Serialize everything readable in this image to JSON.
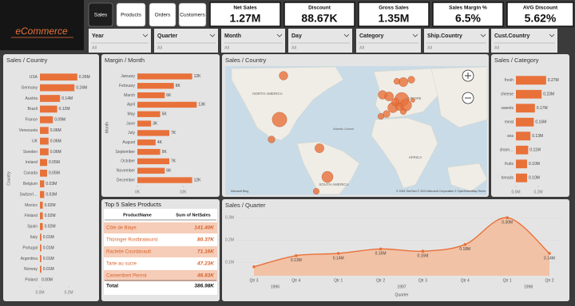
{
  "logo": "eCommerce",
  "tabs": [
    "Sales",
    "Products",
    "Orders",
    "Customers"
  ],
  "kpis": [
    {
      "title": "Net Sales",
      "value": "1.27M"
    },
    {
      "title": "Discount",
      "value": "88.67K"
    },
    {
      "title": "Gross Sales",
      "value": "1.35M"
    },
    {
      "title": "Sales Margin %",
      "value": "6.5%"
    },
    {
      "title": "AVG Discount",
      "value": "5.62%"
    }
  ],
  "slicers": [
    {
      "label": "Year",
      "value": "All"
    },
    {
      "label": "Quarter",
      "value": "All"
    },
    {
      "label": "Month",
      "value": "All"
    },
    {
      "label": "Day",
      "value": "All"
    },
    {
      "label": "Category",
      "value": "All"
    },
    {
      "label": "Ship.Country",
      "value": "All"
    },
    {
      "label": "Cust.Country",
      "value": "All"
    }
  ],
  "table": {
    "title": "Top 5 Sales Products",
    "columns": [
      "ProductName",
      "Sum of NetSales"
    ],
    "rows": [
      [
        "Côte de Blaye",
        "141.40K"
      ],
      [
        "Thüringer Rostbratwurst",
        "80.37K"
      ],
      [
        "Raclette Courdavault",
        "71.16K"
      ],
      [
        "Tarte au sucre",
        "47.23K"
      ],
      [
        "Camembert Pierrot",
        "46.83K"
      ]
    ],
    "total": [
      "Total",
      "386.98K"
    ]
  },
  "chart_data": [
    {
      "type": "hbar",
      "title": "Sales / Country",
      "y_label": "Country",
      "categories": [
        "USA",
        "Germany",
        "Austria",
        "Brazil",
        "France",
        "Venezuela",
        "UK",
        "Sweden",
        "Ireland",
        "Canada",
        "Belgium",
        "Switzerl…",
        "Mexico",
        "Finland",
        "Spain",
        "Italy",
        "Portugal",
        "Argentina",
        "Norway",
        "Poland"
      ],
      "values": [
        0.26,
        0.24,
        0.14,
        0.12,
        0.09,
        0.06,
        0.06,
        0.06,
        0.05,
        0.05,
        0.03,
        0.03,
        0.02,
        0.02,
        0.02,
        0.01,
        0.01,
        0.01,
        0.01,
        0.0
      ],
      "value_labels": [
        "0.26M",
        "0.24M",
        "0.14M",
        "0.12M",
        "0.09M",
        "0.06M",
        "0.06M",
        "0.06M",
        "0.05M",
        "0.05M",
        "0.03M",
        "0.03M",
        "0.02M",
        "0.02M",
        "0.02M",
        "0.01M",
        "0.01M",
        "0.01M",
        "0.01M",
        "0.00M"
      ],
      "color": "#e8713a",
      "xlim": [
        0,
        0.3
      ],
      "xticks": [
        {
          "value": 0,
          "label": "0.0M"
        },
        {
          "value": 0.2,
          "label": "0.2M"
        }
      ]
    },
    {
      "type": "hbar",
      "title": "Margin / Month",
      "y_label": "Month",
      "categories": [
        "January",
        "February",
        "March",
        "April",
        "May",
        "June",
        "July",
        "August",
        "September",
        "October",
        "November",
        "December"
      ],
      "values": [
        12,
        8,
        6,
        13,
        5,
        3,
        7,
        4,
        5,
        7,
        6,
        12
      ],
      "value_labels": [
        "12K",
        "8K",
        "6K",
        "13K",
        "5K",
        "3K",
        "7K",
        "4K",
        "5K",
        "7K",
        "6K",
        "12K"
      ],
      "color": "#e8713a",
      "xlim": [
        0,
        14
      ],
      "xticks": [
        {
          "value": 0,
          "label": "0K"
        },
        {
          "value": 10,
          "label": "10K"
        }
      ]
    },
    {
      "type": "map",
      "title": "Sales / Country",
      "labels": [
        "NORTH AMERICA",
        "EUROPE",
        "AFRICA",
        "SOUTH AMERICA",
        "Atlantic Ocean"
      ],
      "credit": "Microsoft Bing",
      "attribution": "© 2024 TomTom © 2024 Microsoft Corporation © OpenStreetMap Terms",
      "color": "#e8713a"
    },
    {
      "type": "hbar",
      "title": "Sales / Category",
      "categories": [
        "fresh",
        "cheese",
        "sweets",
        "meat",
        "sea",
        "sham…",
        "fruits",
        "breads"
      ],
      "values": [
        0.27,
        0.23,
        0.17,
        0.16,
        0.13,
        0.11,
        0.1,
        0.1
      ],
      "value_labels": [
        "0.27M",
        "0.23M",
        "0.17M",
        "0.16M",
        "0.13M",
        "0.11M",
        "0.10M",
        "0.10M"
      ],
      "color": "#e8713a",
      "xlim": [
        0,
        0.3
      ],
      "xticks": [
        {
          "value": 0,
          "label": "0.0M"
        },
        {
          "value": 0.2,
          "label": "0.2M"
        }
      ]
    },
    {
      "type": "area",
      "title": "Sales / Quarter",
      "x_label": "Quarter",
      "categories": [
        "Qtr 3",
        "Qtr 4",
        "Qtr 1",
        "Qtr 2",
        "Qtr 3",
        "Qtr 4",
        "Qtr 1",
        "Qtr 2"
      ],
      "years": [
        "1996",
        null,
        "1997",
        null,
        null,
        null,
        "1998",
        null
      ],
      "values": [
        0.08,
        0.13,
        0.14,
        0.16,
        0.15,
        0.18,
        0.3,
        0.14
      ],
      "value_labels": [
        null,
        "0.13M",
        "0.14M",
        "0.16M",
        "0.15M",
        "0.18M",
        "0.30M",
        "0.14M"
      ],
      "color": "#e8713a",
      "fill": "#f2c2a6",
      "grid": true,
      "ylim": [
        0.04,
        0.34
      ],
      "yticks": [
        {
          "value": 0.1,
          "label": "0.1M"
        },
        {
          "value": 0.2,
          "label": "0.2M"
        },
        {
          "value": 0.3,
          "label": "0.3M"
        }
      ]
    }
  ]
}
